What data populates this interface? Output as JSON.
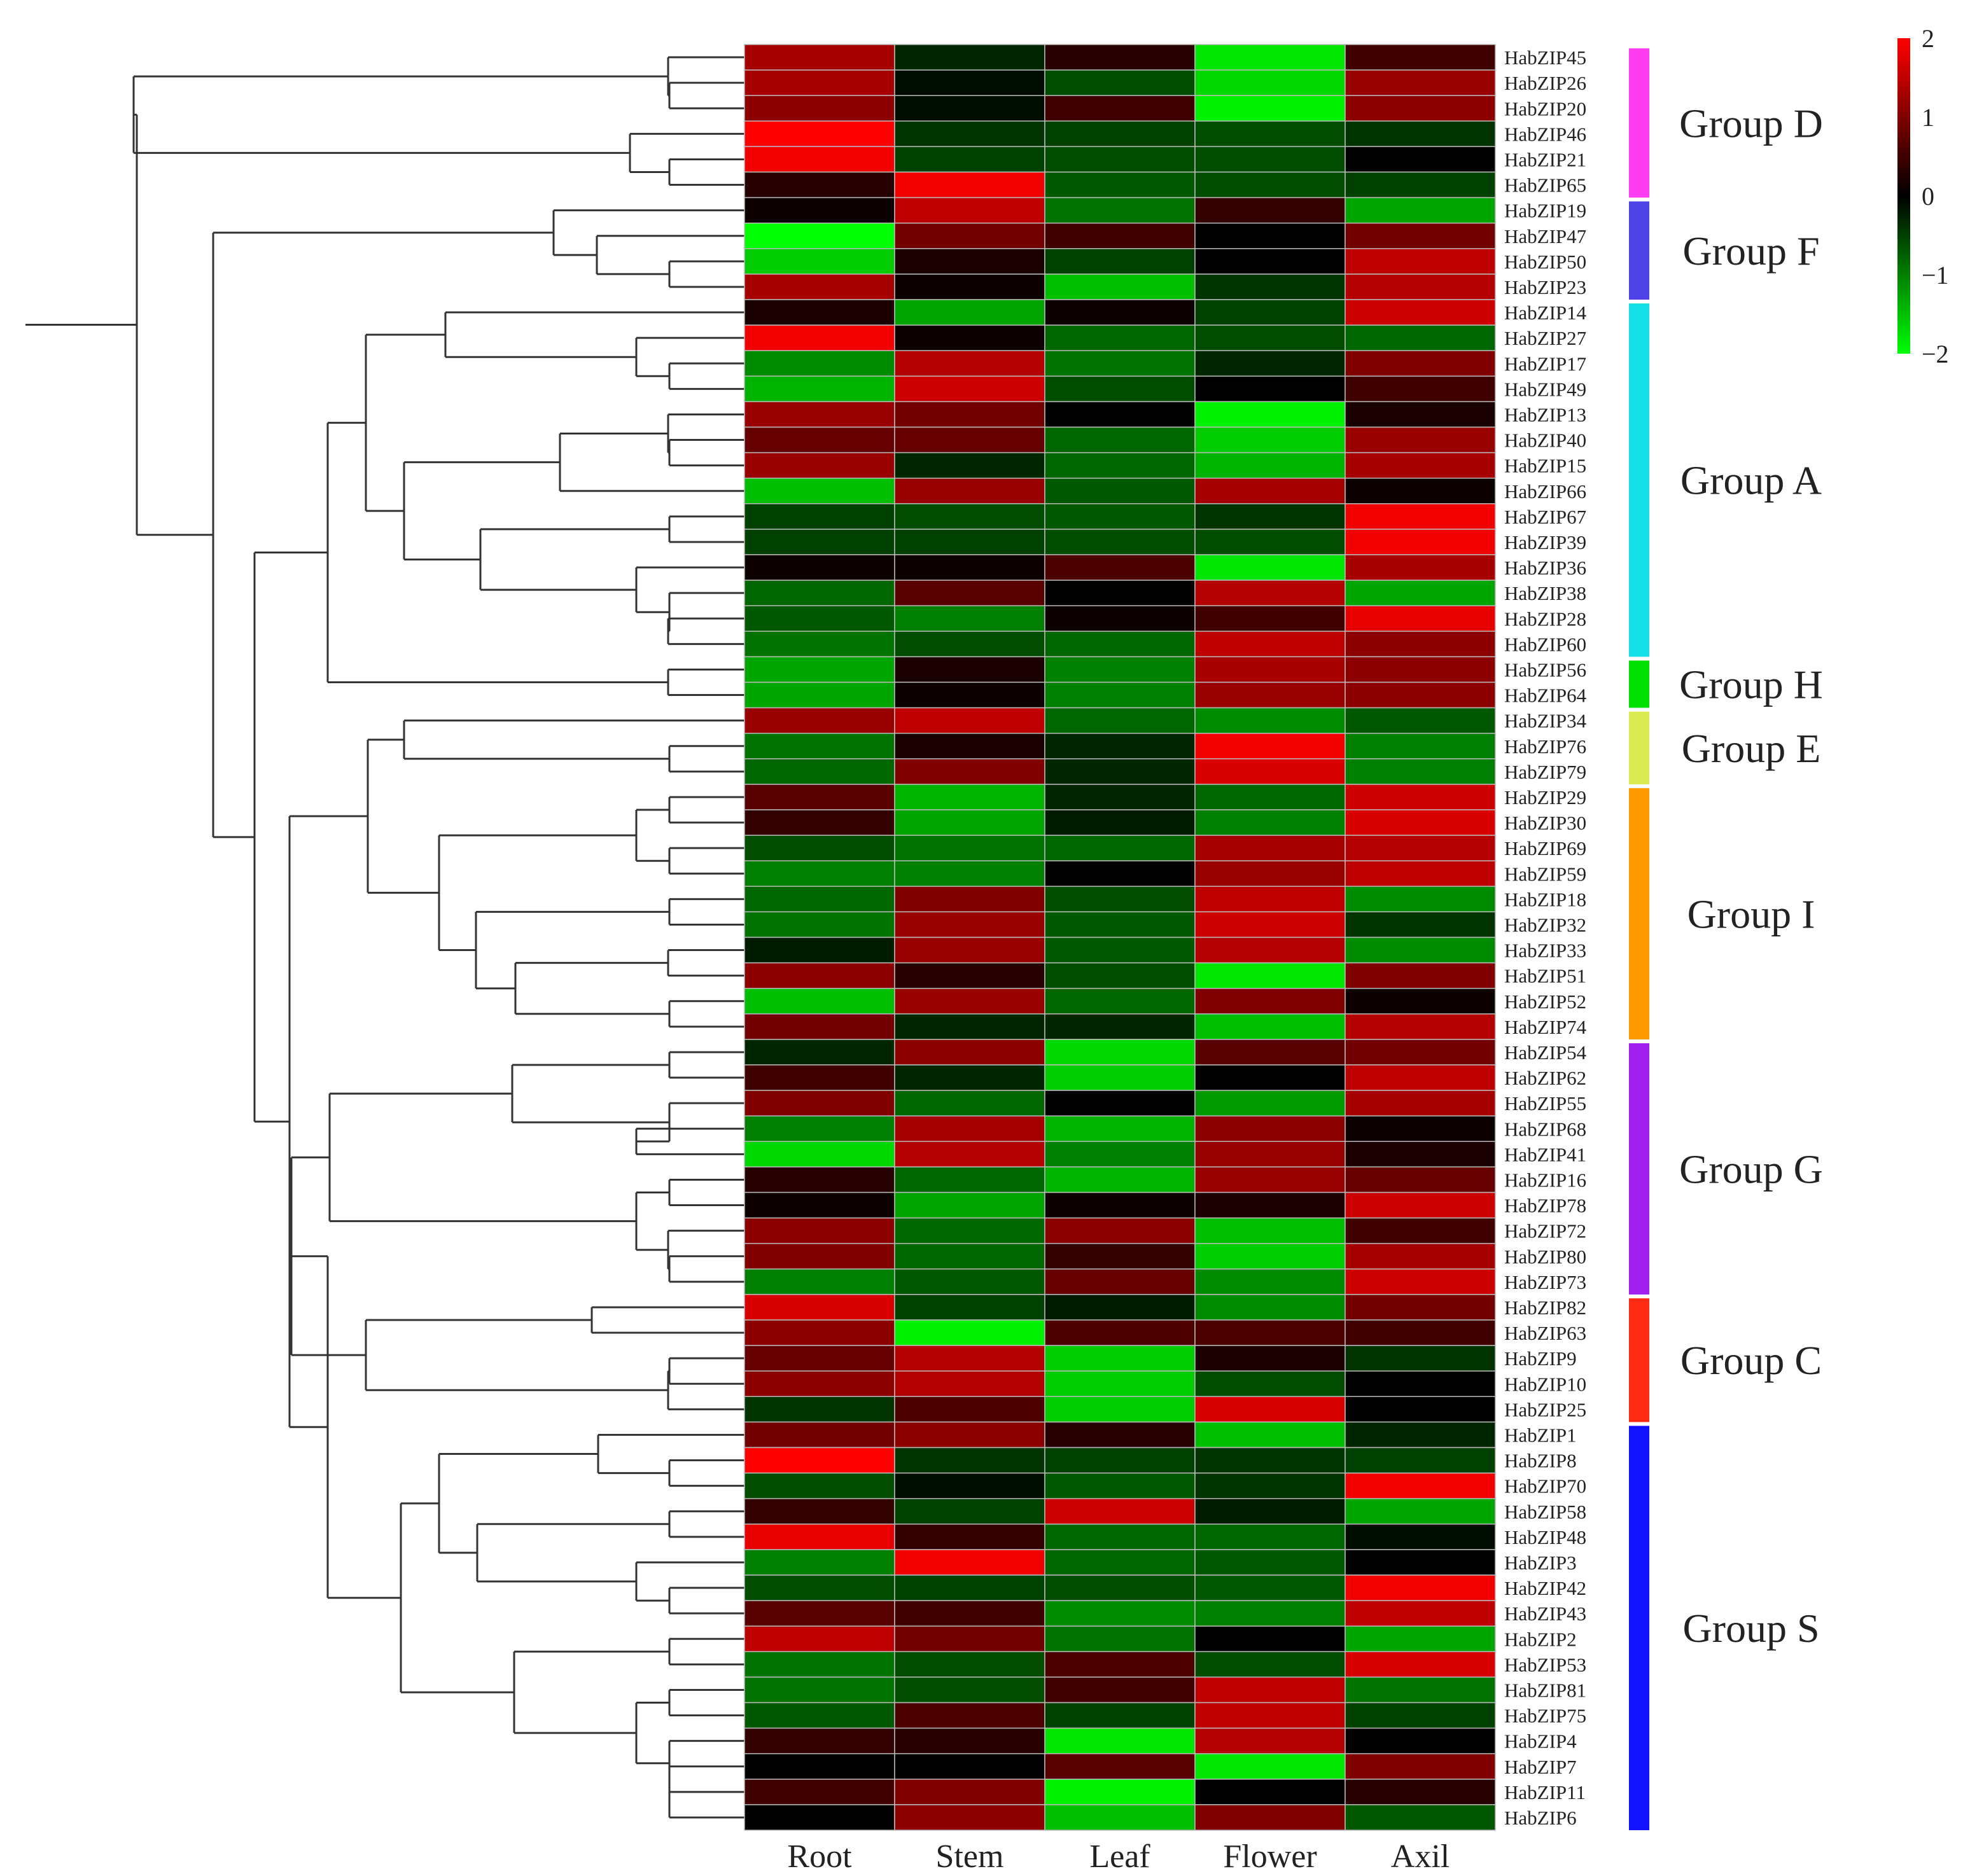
{
  "chart_data": {
    "type": "heatmap",
    "title": "",
    "xlabel": "",
    "ylabel": "",
    "tissues": [
      "Root",
      "Stem",
      "Leaf",
      "Flower",
      "Axil"
    ],
    "genes": [
      "HabZIP45",
      "HabZIP26",
      "HabZIP20",
      "HabZIP46",
      "HabZIP21",
      "HabZIP65",
      "HabZIP19",
      "HabZIP47",
      "HabZIP50",
      "HabZIP23",
      "HabZIP14",
      "HabZIP27",
      "HabZIP17",
      "HabZIP49",
      "HabZIP13",
      "HabZIP40",
      "HabZIP15",
      "HabZIP66",
      "HabZIP67",
      "HabZIP39",
      "HabZIP36",
      "HabZIP38",
      "HabZIP28",
      "HabZIP60",
      "HabZIP56",
      "HabZIP64",
      "HabZIP34",
      "HabZIP76",
      "HabZIP79",
      "HabZIP29",
      "HabZIP30",
      "HabZIP69",
      "HabZIP59",
      "HabZIP18",
      "HabZIP32",
      "HabZIP33",
      "HabZIP51",
      "HabZIP52",
      "HabZIP74",
      "HabZIP54",
      "HabZIP62",
      "HabZIP55",
      "HabZIP68",
      "HabZIP41",
      "HabZIP16",
      "HabZIP78",
      "HabZIP72",
      "HabZIP80",
      "HabZIP73",
      "HabZIP82",
      "HabZIP63",
      "HabZIP9",
      "HabZIP10",
      "HabZIP25",
      "HabZIP1",
      "HabZIP8",
      "HabZIP70",
      "HabZIP58",
      "HabZIP48",
      "HabZIP3",
      "HabZIP42",
      "HabZIP43",
      "HabZIP2",
      "HabZIP53",
      "HabZIP81",
      "HabZIP75",
      "HabZIP4",
      "HabZIP7",
      "HabZIP11",
      "HabZIP6"
    ],
    "values": [
      [
        1.3,
        -0.3,
        0.3,
        -1.8,
        0.5
      ],
      [
        1.3,
        -0.1,
        -0.6,
        -1.7,
        1.2
      ],
      [
        1.1,
        -0.1,
        0.5,
        -1.9,
        1.1
      ],
      [
        2.0,
        -0.4,
        -0.5,
        -0.6,
        -0.4
      ],
      [
        1.9,
        -0.5,
        -0.6,
        -0.6,
        0.0
      ],
      [
        0.3,
        1.9,
        -0.7,
        -0.6,
        -0.5
      ],
      [
        0.1,
        1.5,
        -0.9,
        0.4,
        -1.3
      ],
      [
        -2.0,
        0.9,
        0.5,
        0.0,
        0.9
      ],
      [
        -1.6,
        0.2,
        -0.5,
        0.0,
        1.5
      ],
      [
        1.3,
        0.1,
        -1.5,
        -0.4,
        1.4
      ],
      [
        0.2,
        -1.3,
        0.1,
        -0.5,
        1.6
      ],
      [
        1.9,
        0.1,
        -0.8,
        -0.6,
        -0.8
      ],
      [
        -1.1,
        1.4,
        -0.9,
        -0.3,
        1.0
      ],
      [
        -1.4,
        1.6,
        -0.6,
        0.0,
        0.5
      ],
      [
        1.2,
        0.9,
        0.0,
        -1.9,
        0.2
      ],
      [
        0.8,
        0.8,
        -0.8,
        -1.6,
        1.2
      ],
      [
        1.2,
        -0.3,
        -0.8,
        -1.4,
        1.3
      ],
      [
        -1.5,
        1.2,
        -0.7,
        1.3,
        0.1
      ],
      [
        -0.5,
        -0.6,
        -0.7,
        -0.4,
        1.9
      ],
      [
        -0.5,
        -0.5,
        -0.6,
        -0.6,
        1.9
      ],
      [
        0.1,
        0.1,
        0.6,
        -1.8,
        1.3
      ],
      [
        -0.8,
        0.7,
        0.0,
        1.4,
        -1.3
      ],
      [
        -0.7,
        -1.0,
        0.1,
        0.5,
        1.8
      ],
      [
        -0.9,
        -0.6,
        -0.8,
        1.5,
        1.1
      ],
      [
        -1.3,
        0.2,
        -1.0,
        1.3,
        1.1
      ],
      [
        -1.3,
        0.1,
        -1.0,
        1.2,
        1.1
      ],
      [
        1.2,
        1.5,
        -0.8,
        -1.1,
        -0.7
      ],
      [
        -0.9,
        0.2,
        -0.3,
        1.9,
        -1.0
      ],
      [
        -0.8,
        1.0,
        -0.3,
        1.7,
        -1.0
      ],
      [
        0.7,
        -1.4,
        -0.3,
        -0.8,
        1.6
      ],
      [
        0.4,
        -1.3,
        -0.2,
        -1.0,
        1.7
      ],
      [
        -0.6,
        -0.9,
        -0.8,
        1.3,
        1.4
      ],
      [
        -1.0,
        -1.0,
        0.0,
        1.2,
        1.5
      ],
      [
        -0.8,
        1.0,
        -0.6,
        1.5,
        -1.1
      ],
      [
        -0.9,
        1.2,
        -0.7,
        1.6,
        -0.4
      ],
      [
        -0.2,
        1.2,
        -0.7,
        1.4,
        -1.1
      ],
      [
        1.1,
        0.3,
        -0.6,
        -1.8,
        1.0
      ],
      [
        -1.5,
        1.2,
        -0.8,
        1.0,
        0.1
      ],
      [
        0.9,
        -0.3,
        -0.3,
        -1.5,
        1.4
      ],
      [
        -0.3,
        1.1,
        -1.7,
        0.7,
        0.9
      ],
      [
        0.5,
        -0.3,
        -1.6,
        0.0,
        1.5
      ],
      [
        1.0,
        -0.8,
        0.0,
        -1.2,
        1.3
      ],
      [
        -1.0,
        1.3,
        -1.4,
        1.1,
        0.1
      ],
      [
        -1.7,
        1.4,
        -1.0,
        1.2,
        0.2
      ],
      [
        0.3,
        -0.8,
        -1.4,
        1.2,
        0.8
      ],
      [
        0.1,
        -1.3,
        0.1,
        0.2,
        1.6
      ],
      [
        1.1,
        -0.8,
        1.1,
        -1.5,
        0.5
      ],
      [
        1.0,
        -0.8,
        0.4,
        -1.6,
        1.3
      ],
      [
        -1.0,
        -0.7,
        0.8,
        -1.1,
        1.6
      ],
      [
        1.7,
        -0.5,
        -0.2,
        -1.1,
        0.9
      ],
      [
        1.1,
        -1.9,
        0.6,
        0.6,
        0.5
      ],
      [
        0.8,
        1.4,
        -1.6,
        0.2,
        -0.4
      ],
      [
        1.1,
        1.4,
        -1.6,
        -0.6,
        0.0
      ],
      [
        -0.4,
        0.6,
        -1.6,
        1.7,
        0.0
      ],
      [
        0.9,
        1.1,
        0.3,
        -1.5,
        -0.3
      ],
      [
        2.0,
        -0.4,
        -0.5,
        -0.4,
        -0.5
      ],
      [
        -0.6,
        -0.1,
        -0.7,
        -0.4,
        1.9
      ],
      [
        0.4,
        -0.5,
        1.6,
        -0.2,
        -1.3
      ],
      [
        1.8,
        0.4,
        -0.8,
        -0.8,
        -0.1
      ],
      [
        -1.0,
        1.9,
        -0.8,
        -0.7,
        0.0
      ],
      [
        -0.6,
        -0.5,
        -0.6,
        -0.7,
        1.9
      ],
      [
        0.7,
        0.5,
        -1.1,
        -1.0,
        1.5
      ],
      [
        1.5,
        0.9,
        -0.9,
        0.0,
        -1.3
      ],
      [
        -0.9,
        -0.6,
        0.6,
        -0.6,
        1.7
      ],
      [
        -0.9,
        -0.6,
        0.5,
        1.5,
        -0.9
      ],
      [
        -0.7,
        0.6,
        -0.5,
        1.5,
        -0.5
      ],
      [
        0.4,
        0.3,
        -1.8,
        1.4,
        0.0
      ],
      [
        0.0,
        0.0,
        0.7,
        -1.8,
        1.0
      ],
      [
        0.5,
        1.0,
        -1.9,
        0.0,
        0.3
      ],
      [
        0.0,
        1.1,
        -1.5,
        1.0,
        -0.7
      ]
    ],
    "groups": [
      {
        "name": "Group D",
        "start": 0,
        "end": 5,
        "color": "#ff3cf0"
      },
      {
        "name": "Group F",
        "start": 6,
        "end": 9,
        "color": "#4e42e6"
      },
      {
        "name": "Group A",
        "start": 10,
        "end": 23,
        "color": "#14dfe6"
      },
      {
        "name": "Group H",
        "start": 24,
        "end": 25,
        "color": "#00e000"
      },
      {
        "name": "Group E",
        "start": 26,
        "end": 28,
        "color": "#d8ec52"
      },
      {
        "name": "Group I",
        "start": 29,
        "end": 38,
        "color": "#ff9900"
      },
      {
        "name": "Group G",
        "start": 39,
        "end": 48,
        "color": "#a020f0"
      },
      {
        "name": "Group C",
        "start": 49,
        "end": 53,
        "color": "#ff2a14"
      },
      {
        "name": "Group S",
        "start": 54,
        "end": 69,
        "color": "#1212ff"
      }
    ],
    "color_scale": {
      "min": -2,
      "max": 2,
      "low_color": "#00ff00",
      "mid_color": "#000000",
      "high_color": "#ff0000",
      "ticks": [
        "2",
        "1",
        "0",
        "−1",
        "−2"
      ]
    }
  }
}
